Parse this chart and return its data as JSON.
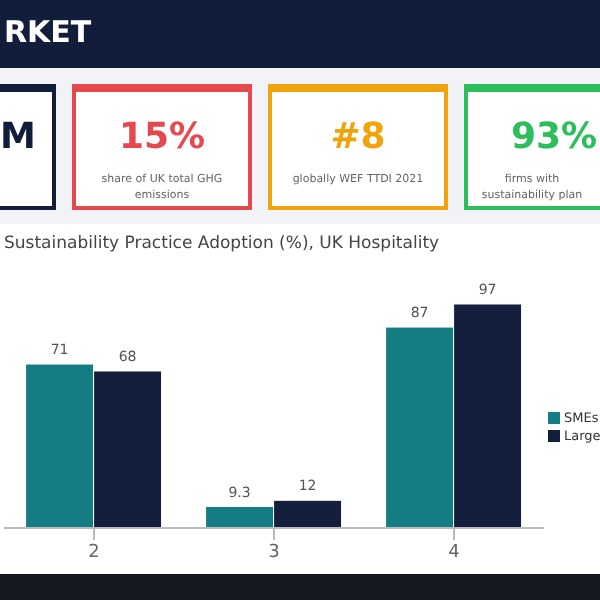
{
  "chart_data": [
    {
      "type": "other",
      "title": "RKET",
      "categories": [
        "M",
        "15%",
        "#8",
        "93%"
      ],
      "colors": [
        "#111d3b",
        "#e5484d",
        "#f0a30a",
        "#2dbe5c"
      ],
      "annotations": [
        "share of UK total GHG emissions",
        "globally WEF TTDI 2021",
        "firms with sustainability plan"
      ]
    },
    {
      "type": "bar",
      "title": "Sustainability Practice Adoption (%), UK Hospitality",
      "categories": [
        "2",
        "3",
        "4"
      ],
      "series": [
        {
          "name": "SMEs",
          "color": "#147d83",
          "values": [
            71,
            9.3,
            87
          ]
        },
        {
          "name": "Large",
          "color": "#131f3d",
          "values": [
            68,
            12,
            97
          ]
        }
      ],
      "tick_labels": "x",
      "legend": "right",
      "data_labels": true
    }
  ]
}
